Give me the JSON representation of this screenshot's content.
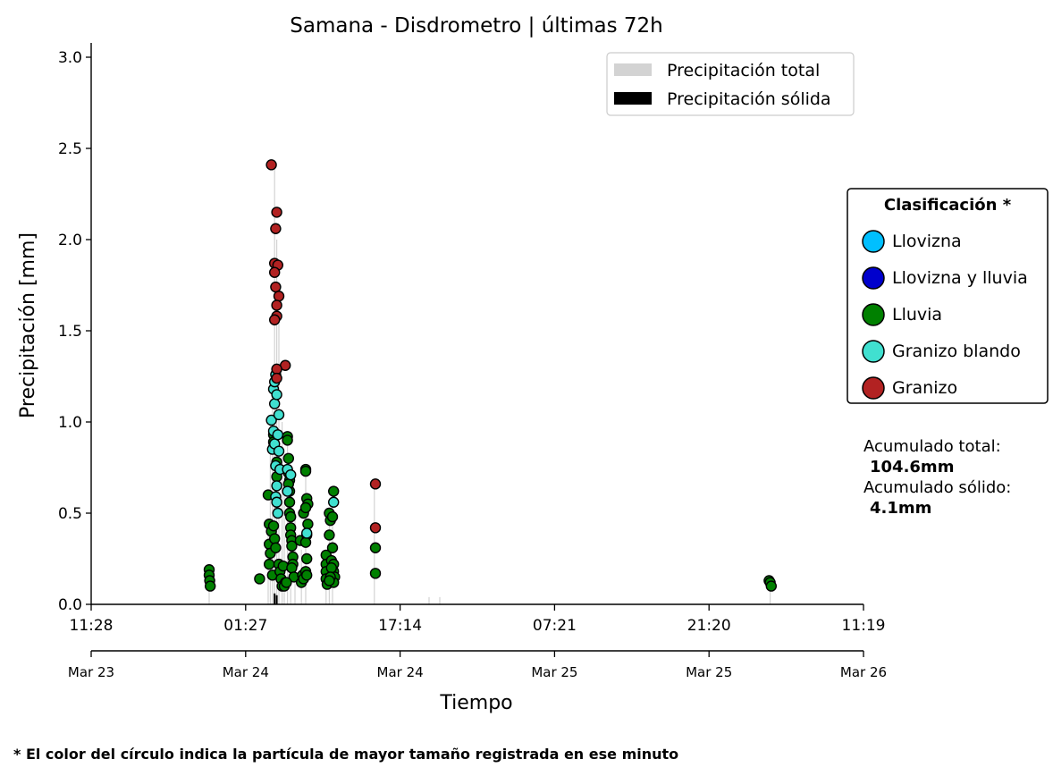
{
  "chart_data": {
    "type": "scatter",
    "title": "Samana - Disdrometro  |  últimas 72h",
    "xlabel": "Tiempo",
    "ylabel": "Precipitación [mm]",
    "ylim": [
      0,
      3.0
    ],
    "yticks": [
      "0.0",
      "0.5",
      "1.0",
      "1.5",
      "2.0",
      "2.5",
      "3.0"
    ],
    "xlim_hours": [
      0,
      72
    ],
    "xtick_times": [
      "11:28",
      "01:27",
      "17:14",
      "07:21",
      "21:20",
      "11:19"
    ],
    "xtick_dates": [
      "Mar 23",
      "Mar 24",
      "Mar 24",
      "Mar 25",
      "Mar 25",
      "Mar 26"
    ],
    "legend_top": [
      {
        "label": "Precipitación total",
        "color": "#d3d3d3"
      },
      {
        "label": "Precipitación sólida",
        "color": "#000000"
      }
    ],
    "legend_position": "top-right",
    "classification": {
      "title": "Clasificación *",
      "items": [
        {
          "label": "Llovizna",
          "color": "#00bfff"
        },
        {
          "label": "Llovizna y lluvia",
          "color": "#0000cd"
        },
        {
          "label": "Lluvia",
          "color": "#008000"
        },
        {
          "label": "Granizo blando",
          "color": "#40e0d0"
        },
        {
          "label": "Granizo",
          "color": "#b22222"
        }
      ]
    },
    "totals": {
      "total_label": "Acumulado total:",
      "total_value": "104.6mm",
      "solid_label": "Acumulado sólido:",
      "solid_value": "4.1mm"
    },
    "series": [
      {
        "class": "Lluvia",
        "points": [
          [
            11.0,
            0.19
          ],
          [
            11.0,
            0.16
          ],
          [
            11.05,
            0.13
          ],
          [
            11.1,
            0.1
          ],
          [
            15.7,
            0.14
          ],
          [
            16.5,
            0.6
          ],
          [
            16.6,
            0.44
          ],
          [
            16.6,
            0.33
          ],
          [
            16.7,
            0.28
          ],
          [
            16.8,
            0.4
          ],
          [
            16.6,
            0.22
          ],
          [
            16.9,
            0.16
          ],
          [
            17.0,
            0.93
          ],
          [
            17.0,
            0.89
          ],
          [
            17.0,
            0.86
          ],
          [
            17.0,
            0.43
          ],
          [
            17.1,
            0.36
          ],
          [
            17.2,
            0.31
          ],
          [
            17.3,
            0.7
          ],
          [
            17.3,
            0.78
          ],
          [
            17.5,
            0.22
          ],
          [
            17.6,
            0.18
          ],
          [
            17.7,
            0.14
          ],
          [
            17.8,
            0.1
          ],
          [
            17.9,
            0.21
          ],
          [
            18.1,
            0.12
          ],
          [
            18.0,
            0.1
          ],
          [
            18.3,
            0.92
          ],
          [
            18.3,
            0.9
          ],
          [
            18.4,
            0.8
          ],
          [
            18.4,
            0.72
          ],
          [
            18.5,
            0.68
          ],
          [
            18.5,
            0.62
          ],
          [
            18.5,
            0.56
          ],
          [
            18.5,
            0.5
          ],
          [
            18.6,
            0.48
          ],
          [
            18.6,
            0.42
          ],
          [
            18.6,
            0.38
          ],
          [
            18.7,
            0.35
          ],
          [
            18.7,
            0.32
          ],
          [
            18.8,
            0.26
          ],
          [
            18.8,
            0.22
          ],
          [
            18.7,
            0.2
          ],
          [
            18.9,
            0.15
          ],
          [
            18.4,
            0.66
          ],
          [
            18.2,
            0.12
          ],
          [
            19.6,
            0.12
          ],
          [
            19.7,
            0.16
          ],
          [
            19.8,
            0.14
          ],
          [
            19.8,
            0.5
          ],
          [
            19.5,
            0.35
          ],
          [
            20.0,
            0.74
          ],
          [
            20.0,
            0.73
          ],
          [
            20.1,
            0.58
          ],
          [
            20.2,
            0.55
          ],
          [
            20.0,
            0.53
          ],
          [
            20.2,
            0.44
          ],
          [
            20.1,
            0.38
          ],
          [
            20.0,
            0.34
          ],
          [
            20.1,
            0.25
          ],
          [
            20.0,
            0.18
          ],
          [
            20.1,
            0.16
          ],
          [
            21.9,
            0.27
          ],
          [
            21.9,
            0.22
          ],
          [
            21.9,
            0.18
          ],
          [
            21.9,
            0.14
          ],
          [
            22.0,
            0.11
          ],
          [
            22.2,
            0.5
          ],
          [
            22.3,
            0.46
          ],
          [
            22.2,
            0.38
          ],
          [
            22.5,
            0.48
          ],
          [
            22.6,
            0.62
          ],
          [
            22.4,
            0.24
          ],
          [
            22.5,
            0.31
          ],
          [
            22.6,
            0.22
          ],
          [
            22.6,
            0.18
          ],
          [
            22.7,
            0.15
          ],
          [
            22.6,
            0.12
          ],
          [
            22.4,
            0.2
          ],
          [
            22.3,
            0.15
          ],
          [
            22.2,
            0.13
          ],
          [
            26.5,
            0.31
          ],
          [
            26.5,
            0.17
          ],
          [
            63.2,
            0.13
          ],
          [
            63.3,
            0.12
          ],
          [
            63.4,
            0.1
          ]
        ]
      },
      {
        "class": "Granizo blando",
        "points": [
          [
            16.8,
            1.01
          ],
          [
            16.9,
            0.85
          ],
          [
            17.0,
            0.95
          ],
          [
            17.1,
            1.1
          ],
          [
            17.1,
            0.88
          ],
          [
            17.2,
            0.76
          ],
          [
            17.3,
            0.65
          ],
          [
            17.0,
            1.18
          ],
          [
            17.1,
            1.22
          ],
          [
            17.2,
            1.26
          ],
          [
            17.5,
            1.04
          ],
          [
            17.4,
            0.93
          ],
          [
            17.5,
            0.84
          ],
          [
            17.6,
            0.74
          ],
          [
            17.2,
            0.59
          ],
          [
            17.3,
            0.56
          ],
          [
            17.4,
            0.5
          ],
          [
            17.3,
            1.15
          ],
          [
            18.3,
            0.74
          ],
          [
            18.3,
            0.62
          ],
          [
            18.6,
            0.71
          ],
          [
            22.6,
            0.56
          ],
          [
            20.1,
            0.39
          ]
        ]
      },
      {
        "class": "Granizo",
        "points": [
          [
            16.8,
            2.41
          ],
          [
            17.3,
            2.15
          ],
          [
            17.2,
            2.06
          ],
          [
            17.1,
            1.87
          ],
          [
            17.4,
            1.86
          ],
          [
            17.1,
            1.82
          ],
          [
            17.2,
            1.74
          ],
          [
            17.5,
            1.69
          ],
          [
            17.3,
            1.64
          ],
          [
            17.3,
            1.58
          ],
          [
            17.1,
            1.56
          ],
          [
            18.1,
            1.31
          ],
          [
            17.3,
            1.29
          ],
          [
            17.3,
            1.24
          ],
          [
            26.5,
            0.66
          ],
          [
            26.5,
            0.42
          ]
        ]
      }
    ],
    "total_bars": [
      [
        16.5,
        0.45
      ],
      [
        16.7,
        1.0
      ],
      [
        16.9,
        1.2
      ],
      [
        17.1,
        2.4
      ],
      [
        17.3,
        2.0
      ],
      [
        17.5,
        1.6
      ],
      [
        17.8,
        1.0
      ],
      [
        18.0,
        0.6
      ],
      [
        18.3,
        0.9
      ],
      [
        18.6,
        0.7
      ],
      [
        19.0,
        0.5
      ],
      [
        19.6,
        0.3
      ],
      [
        20.0,
        0.75
      ],
      [
        21.9,
        0.25
      ],
      [
        22.2,
        0.45
      ],
      [
        22.5,
        0.6
      ],
      [
        26.4,
        0.65
      ],
      [
        11.0,
        0.2
      ],
      [
        31.5,
        0.04
      ],
      [
        32.5,
        0.04
      ],
      [
        63.3,
        0.13
      ]
    ],
    "solid_bars": [
      [
        17.1,
        0.06
      ],
      [
        17.3,
        0.05
      ]
    ],
    "grid": false
  },
  "footnote": "* El color del círculo indica la partícula de mayor tamaño registrada en ese minuto"
}
